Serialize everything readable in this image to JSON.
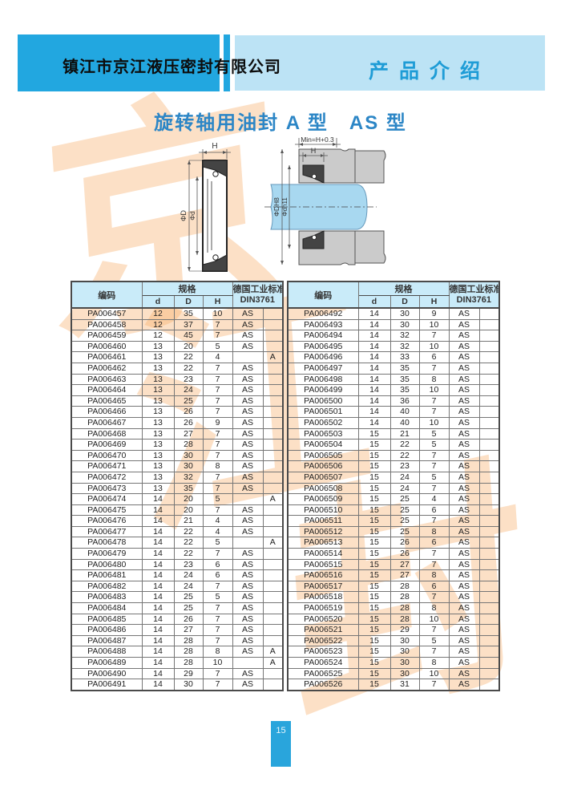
{
  "header": {
    "company": "镇江市京江液压密封有限公司",
    "section": "产品介绍"
  },
  "page_title": "旋转轴用油封 A 型　AS 型",
  "diagram": {
    "min_label": "Min=H+0.3",
    "h_label": "H",
    "h_label2": "H",
    "dia_D": "ΦD",
    "dia_d": "Φd",
    "dia_DH8": "ΦDH8",
    "dia_dh11": "Φdh11"
  },
  "watermark": {
    "chars": [
      "京",
      "江",
      "封"
    ]
  },
  "tables": {
    "header": {
      "code": "编码",
      "spec": "规格",
      "d": "d",
      "D": "D",
      "H": "H",
      "din_line1": "德国工业标准",
      "din_line2": "DIN3761"
    },
    "left_rows": [
      [
        "PA006457",
        "12",
        "35",
        "10",
        "AS",
        ""
      ],
      [
        "PA006458",
        "12",
        "37",
        "7",
        "AS",
        ""
      ],
      [
        "PA006459",
        "12",
        "45",
        "7",
        "AS",
        ""
      ],
      [
        "PA006460",
        "13",
        "20",
        "5",
        "AS",
        ""
      ],
      [
        "PA006461",
        "13",
        "22",
        "4",
        "",
        "A"
      ],
      [
        "PA006462",
        "13",
        "22",
        "7",
        "AS",
        ""
      ],
      [
        "PA006463",
        "13",
        "23",
        "7",
        "AS",
        ""
      ],
      [
        "PA006464",
        "13",
        "24",
        "7",
        "AS",
        ""
      ],
      [
        "PA006465",
        "13",
        "25",
        "7",
        "AS",
        ""
      ],
      [
        "PA006466",
        "13",
        "26",
        "7",
        "AS",
        ""
      ],
      [
        "PA006467",
        "13",
        "26",
        "9",
        "AS",
        ""
      ],
      [
        "PA006468",
        "13",
        "27",
        "7",
        "AS",
        ""
      ],
      [
        "PA006469",
        "13",
        "28",
        "7",
        "AS",
        ""
      ],
      [
        "PA006470",
        "13",
        "30",
        "7",
        "AS",
        ""
      ],
      [
        "PA006471",
        "13",
        "30",
        "8",
        "AS",
        ""
      ],
      [
        "PA006472",
        "13",
        "32",
        "7",
        "AS",
        ""
      ],
      [
        "PA006473",
        "13",
        "35",
        "7",
        "AS",
        ""
      ],
      [
        "PA006474",
        "14",
        "20",
        "5",
        "",
        "A"
      ],
      [
        "PA006475",
        "14",
        "20",
        "7",
        "AS",
        ""
      ],
      [
        "PA006476",
        "14",
        "21",
        "4",
        "AS",
        ""
      ],
      [
        "PA006477",
        "14",
        "22",
        "4",
        "AS",
        ""
      ],
      [
        "PA006478",
        "14",
        "22",
        "5",
        "",
        "A"
      ],
      [
        "PA006479",
        "14",
        "22",
        "7",
        "AS",
        ""
      ],
      [
        "PA006480",
        "14",
        "23",
        "6",
        "AS",
        ""
      ],
      [
        "PA006481",
        "14",
        "24",
        "6",
        "AS",
        ""
      ],
      [
        "PA006482",
        "14",
        "24",
        "7",
        "AS",
        ""
      ],
      [
        "PA006483",
        "14",
        "25",
        "5",
        "AS",
        ""
      ],
      [
        "PA006484",
        "14",
        "25",
        "7",
        "AS",
        ""
      ],
      [
        "PA006485",
        "14",
        "26",
        "7",
        "AS",
        ""
      ],
      [
        "PA006486",
        "14",
        "27",
        "7",
        "AS",
        ""
      ],
      [
        "PA006487",
        "14",
        "28",
        "7",
        "AS",
        ""
      ],
      [
        "PA006488",
        "14",
        "28",
        "8",
        "AS",
        "A"
      ],
      [
        "PA006489",
        "14",
        "28",
        "10",
        "",
        "A"
      ],
      [
        "PA006490",
        "14",
        "29",
        "7",
        "AS",
        ""
      ],
      [
        "PA006491",
        "14",
        "30",
        "7",
        "AS",
        ""
      ]
    ],
    "right_rows": [
      [
        "PA006492",
        "14",
        "30",
        "9",
        "AS",
        ""
      ],
      [
        "PA006493",
        "14",
        "30",
        "10",
        "AS",
        ""
      ],
      [
        "PA006494",
        "14",
        "32",
        "7",
        "AS",
        ""
      ],
      [
        "PA006495",
        "14",
        "32",
        "10",
        "AS",
        ""
      ],
      [
        "PA006496",
        "14",
        "33",
        "6",
        "AS",
        ""
      ],
      [
        "PA006497",
        "14",
        "35",
        "7",
        "AS",
        ""
      ],
      [
        "PA006498",
        "14",
        "35",
        "8",
        "AS",
        ""
      ],
      [
        "PA006499",
        "14",
        "35",
        "10",
        "AS",
        ""
      ],
      [
        "PA006500",
        "14",
        "36",
        "7",
        "AS",
        ""
      ],
      [
        "PA006501",
        "14",
        "40",
        "7",
        "AS",
        ""
      ],
      [
        "PA006502",
        "14",
        "40",
        "10",
        "AS",
        ""
      ],
      [
        "PA006503",
        "15",
        "21",
        "5",
        "AS",
        ""
      ],
      [
        "PA006504",
        "15",
        "22",
        "5",
        "AS",
        ""
      ],
      [
        "PA006505",
        "15",
        "22",
        "7",
        "AS",
        ""
      ],
      [
        "PA006506",
        "15",
        "23",
        "7",
        "AS",
        ""
      ],
      [
        "PA006507",
        "15",
        "24",
        "5",
        "AS",
        ""
      ],
      [
        "PA006508",
        "15",
        "24",
        "7",
        "AS",
        ""
      ],
      [
        "PA006509",
        "15",
        "25",
        "4",
        "AS",
        ""
      ],
      [
        "PA006510",
        "15",
        "25",
        "6",
        "AS",
        ""
      ],
      [
        "PA006511",
        "15",
        "25",
        "7",
        "AS",
        ""
      ],
      [
        "PA006512",
        "15",
        "25",
        "8",
        "AS",
        ""
      ],
      [
        "PA006513",
        "15",
        "26",
        "6",
        "AS",
        ""
      ],
      [
        "PA006514",
        "15",
        "26",
        "7",
        "AS",
        ""
      ],
      [
        "PA006515",
        "15",
        "27",
        "7",
        "AS",
        ""
      ],
      [
        "PA006516",
        "15",
        "27",
        "8",
        "AS",
        ""
      ],
      [
        "PA006517",
        "15",
        "28",
        "6",
        "AS",
        ""
      ],
      [
        "PA006518",
        "15",
        "28",
        "7",
        "AS",
        ""
      ],
      [
        "PA006519",
        "15",
        "28",
        "8",
        "AS",
        ""
      ],
      [
        "PA006520",
        "15",
        "28",
        "10",
        "AS",
        ""
      ],
      [
        "PA006521",
        "15",
        "29",
        "7",
        "AS",
        ""
      ],
      [
        "PA006522",
        "15",
        "30",
        "5",
        "AS",
        ""
      ],
      [
        "PA006523",
        "15",
        "30",
        "7",
        "AS",
        ""
      ],
      [
        "PA006524",
        "15",
        "30",
        "8",
        "AS",
        ""
      ],
      [
        "PA006525",
        "15",
        "30",
        "10",
        "AS",
        ""
      ],
      [
        "PA006526",
        "15",
        "31",
        "7",
        "AS",
        ""
      ]
    ]
  },
  "footer": {
    "page_number": "15"
  },
  "colors": {
    "band_dark": "#22a7e0",
    "band_light": "#bce3f5",
    "table_header_bg": "#c9ebf9",
    "title_blue": "#2c86c6",
    "section_blue": "#1e9cd6",
    "page_num_bg": "#29a5dc",
    "shaft_blue": "#a8d8f0",
    "housing_gray": "#cbcbcb",
    "watermark_orange": "rgba(246,173,105,0.38)"
  }
}
